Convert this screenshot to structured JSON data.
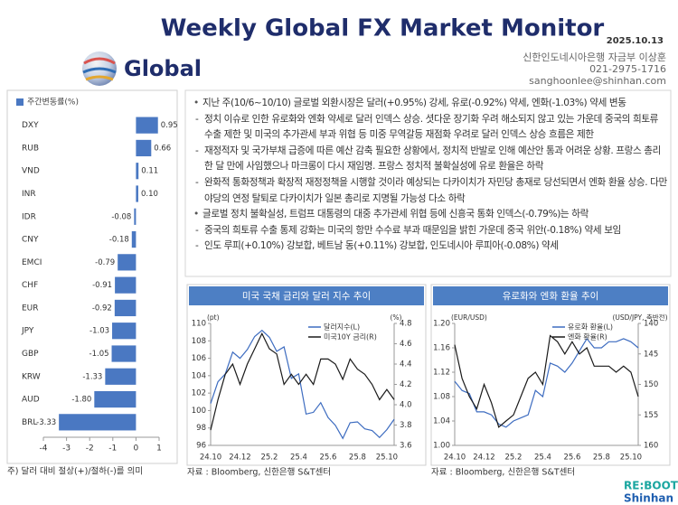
{
  "header": {
    "title": "Weekly Global FX Market Monitor",
    "date": "2025.10.13",
    "section": "Global",
    "contact": [
      "신한인도네시아은행 자금부 이상훈",
      "021-2975-1716",
      "sanghoonlee@shinhan.com"
    ]
  },
  "summary": [
    {
      "text": "지난 주(10/6~10/10) 글로벌 외환시장은 달러(+0.95%) 강세, 유로(-0.92%) 약세, 엔화(-1.03%) 약세 변동",
      "sub": [
        "정치 이슈로 인한 유로화와 엔화 약세로 달러 인덱스 상승. 셧다운 장기화 우려 해소되지 않고 있는 가운데 중국의 희토류 수출 제한 및 미국의 추가관세 부과 위협 등 미중 무역갈등 재점화 우려로 달러 인덱스 상승 흐름은 제한",
        "재정적자 및 국가부채 급증에 따른 예산 감축 필요한 상황에서, 정치적 반발로 인해 예산안 통과 어려운 상황. 프랑스 총리 한 달 만에 사임했으나 마크롱이 다시 재임명. 프랑스 정치적 불확실성에 유로 환율은 하락",
        "완화적 통화정책과 확장적 재정정책을 시행할 것이라 예상되는 다카이치가 자민당 총재로 당선되면서 엔화 환율 상승. 다만 야당의 연정 탈퇴로 다카이치가 일본 총리로 지명될 가능성 다소 하락"
      ]
    },
    {
      "text": "글로벌 정치 불확실성, 트럼프 대통령의 대중 추가관세 위협 등에 신흥국 통화 인덱스(-0.79%)는 하락",
      "sub": [
        "중국의 희토류 수출 통제 강화는 미국의 항만 수수료 부과 때문임을 밝힌 가운데 중국 위안(-0.18%) 약세 보임",
        "인도 루피(+0.10%) 강보합, 베트남 동(+0.11%) 강보합, 인도네시아 루피아(-0.08%) 약세"
      ]
    }
  ],
  "chart_data": [
    {
      "type": "bar",
      "orientation": "horizontal",
      "note": "주) 달러 대비 절상(+)/절하(-)를 의미",
      "categories": [
        "DXY",
        "RUB",
        "VND",
        "INR",
        "IDR",
        "CNY",
        "EMCI",
        "CHF",
        "EUR",
        "JPY",
        "GBP",
        "KRW",
        "AUD",
        "BRL"
      ],
      "series": [
        {
          "name": "주간변동률(%)",
          "color": "#4a78c2",
          "values": [
            0.95,
            0.66,
            0.11,
            0.1,
            -0.08,
            -0.18,
            -0.79,
            -0.91,
            -0.92,
            -1.03,
            -1.05,
            -1.33,
            -1.8,
            -3.33
          ],
          "value_labels": [
            "0.95",
            "0.66",
            "0.11",
            "0.10",
            "-0.08",
            "-0.18",
            "-0.79",
            "-0.91",
            "-0.92",
            "-1.03",
            "-1.05",
            "-1.33",
            "-1.80",
            "-3.33"
          ]
        }
      ],
      "xlim": [
        -4,
        1
      ],
      "xticks": [
        -4,
        -3,
        -2,
        -1,
        0,
        1
      ]
    },
    {
      "type": "line",
      "title": "미국 국채 금리와 달러 지수 추이",
      "source": "자료 : Bloomberg, 신한은행 S&T센터",
      "categories": [
        "24.10",
        null,
        null,
        null,
        "24.12",
        null,
        null,
        null,
        "25.2",
        null,
        null,
        null,
        "25.4",
        null,
        null,
        null,
        "25.6",
        null,
        null,
        null,
        "25.8",
        null,
        null,
        null,
        "25.10",
        null
      ],
      "y_label": "(pt)",
      "y2_label": "(%)",
      "ylim": [
        96,
        110
      ],
      "yticks": [
        96,
        98,
        100,
        102,
        104,
        106,
        108,
        110
      ],
      "y2lim": [
        3.6,
        4.8
      ],
      "y2ticks": [
        3.6,
        3.8,
        {
          "value": 4,
          "label": "4.0"
        },
        4.2,
        4.4,
        4.6,
        4.8
      ],
      "series": [
        {
          "name": "달러지수(L)",
          "color": "#3d6cc0",
          "values": [
            100.8,
            103.3,
            104.2,
            106.7,
            106,
            107,
            108.5,
            109.2,
            108.4,
            106.8,
            107.3,
            103.7,
            104.2,
            99.6,
            99.8,
            100.9,
            99.2,
            98.3,
            96.8,
            98.6,
            98.7,
            97.9,
            97.7,
            96.9,
            97.8,
            99
          ]
        },
        {
          "name": "미국10Y 금리(R)",
          "color": "#1a1a1a",
          "axis": "y2",
          "values": [
            3.75,
            4.05,
            4.3,
            4.4,
            4.2,
            4.4,
            4.55,
            4.7,
            4.55,
            4.5,
            4.2,
            4.3,
            4.2,
            4.3,
            4.2,
            4.45,
            4.45,
            4.4,
            4.25,
            4.45,
            4.35,
            4.3,
            4.2,
            4.05,
            4.15,
            4.05
          ]
        }
      ]
    },
    {
      "type": "line",
      "title": "유로화와 엔화 환율 추이",
      "source": "자료 : Bloomberg, 신한은행 S&T센터",
      "categories": [
        "24.10",
        null,
        null,
        null,
        "24.12",
        null,
        null,
        null,
        "25.2",
        null,
        null,
        null,
        "25.4",
        null,
        null,
        null,
        "25.6",
        null,
        null,
        null,
        "25.8",
        null,
        null,
        null,
        "25.10",
        null
      ],
      "y_label": "(EUR/USD)",
      "y2_label": "(USD/JPY, 축반전)",
      "ylim": [
        1.0,
        1.2
      ],
      "yticks": [
        {
          "value": 1.0,
          "label": "1.00"
        },
        1.04,
        1.08,
        1.12,
        1.16,
        {
          "value": 1.2,
          "label": "1.20"
        }
      ],
      "y2lim": [
        160,
        140
      ],
      "y2ticks": [
        140,
        145,
        150,
        155,
        160
      ],
      "series": [
        {
          "name": "유로화 환율(L)",
          "color": "#3d6cc0",
          "values": [
            1.105,
            1.09,
            1.085,
            1.055,
            1.055,
            1.05,
            1.035,
            1.03,
            1.04,
            1.045,
            1.05,
            1.09,
            1.08,
            1.135,
            1.13,
            1.12,
            1.135,
            1.155,
            1.175,
            1.16,
            1.16,
            1.17,
            1.17,
            1.175,
            1.17,
            1.16
          ]
        },
        {
          "name": "엔화 환율(R)",
          "color": "#1a1a1a",
          "axis": "y2",
          "values": [
            143.5,
            149,
            152,
            154,
            150,
            153,
            157,
            156,
            155,
            152,
            149,
            148,
            150,
            142,
            143,
            145,
            143,
            145,
            144,
            147,
            147,
            147,
            148,
            147,
            148,
            152
          ]
        }
      ]
    }
  ],
  "logo": {
    "line1": "RE:BOOT",
    "line2": "Shinhan"
  }
}
